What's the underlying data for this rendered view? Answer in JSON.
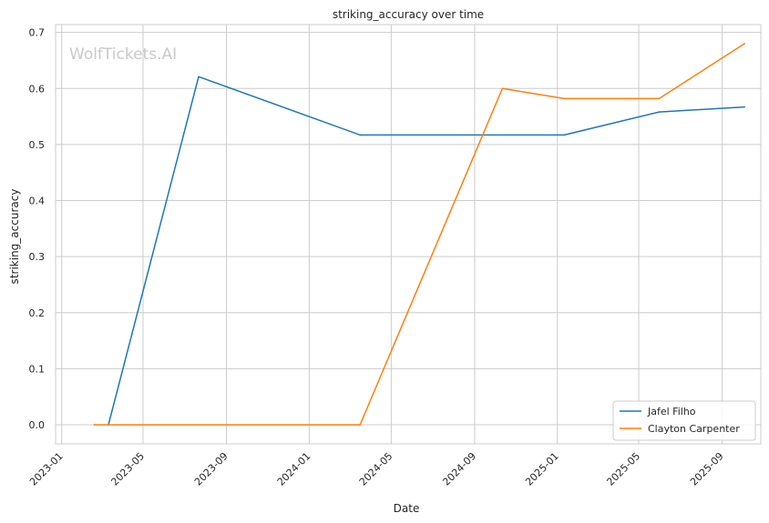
{
  "chart_data": {
    "type": "line",
    "title": "striking_accuracy over time",
    "xlabel": "Date",
    "ylabel": "striking_accuracy",
    "watermark": "WolfTickets.AI",
    "xlim": [
      "2022-12-23",
      "2025-10-28"
    ],
    "ylim": [
      -0.034,
      0.714
    ],
    "x_ticks": [
      "2023-01",
      "2023-05",
      "2023-09",
      "2024-01",
      "2024-05",
      "2024-09",
      "2025-01",
      "2025-05",
      "2025-09"
    ],
    "y_ticks": [
      0.0,
      0.1,
      0.2,
      0.3,
      0.4,
      0.5,
      0.6,
      0.7
    ],
    "grid": true,
    "legend_position": "lower-right",
    "series": [
      {
        "name": "Jafel Filho",
        "color": "#1f77b4",
        "x": [
          "2023-03-11",
          "2023-07-22",
          "2024-03-16",
          "2025-01-11",
          "2025-05-31",
          "2025-10-04"
        ],
        "y": [
          0.0,
          0.621,
          0.517,
          0.517,
          0.558,
          0.567
        ]
      },
      {
        "name": "Clayton Carpenter",
        "color": "#ff7f0e",
        "x": [
          "2023-02-18",
          "2024-03-16",
          "2024-10-12",
          "2025-01-11",
          "2025-05-31",
          "2025-10-04"
        ],
        "y": [
          0.0,
          0.0,
          0.6,
          0.582,
          0.582,
          0.68
        ]
      }
    ]
  }
}
